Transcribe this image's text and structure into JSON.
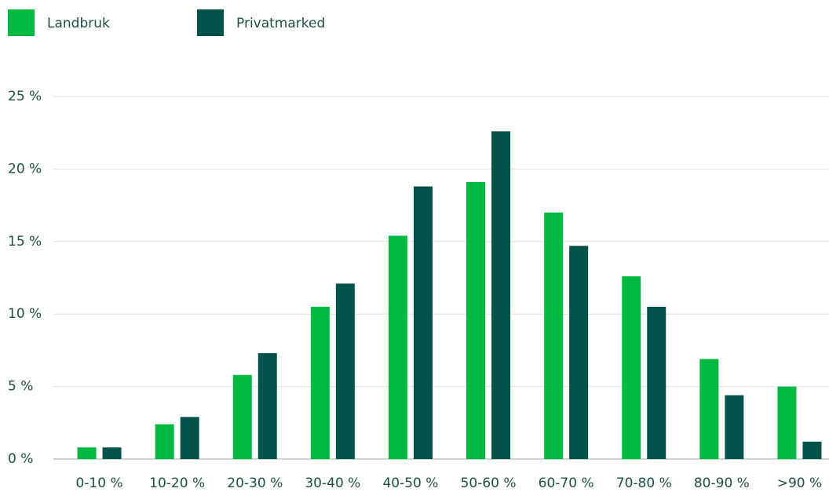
{
  "chart_data": {
    "type": "bar",
    "categories": [
      "0-10 %",
      "10-20 %",
      "20-30 %",
      "30-40 %",
      "40-50 %",
      "50-60 %",
      "60-70 %",
      "70-80 %",
      "80-90 %",
      ">90 %"
    ],
    "series": [
      {
        "name": "Landbruk",
        "color": "#00b941",
        "values": [
          0.8,
          2.4,
          5.8,
          10.5,
          15.4,
          19.1,
          17.0,
          12.6,
          6.9,
          5.0
        ]
      },
      {
        "name": "Privatmarked",
        "color": "#00524a",
        "values": [
          0.8,
          2.9,
          7.3,
          12.1,
          18.8,
          22.6,
          14.7,
          10.5,
          4.4,
          1.2
        ]
      }
    ],
    "ylim": [
      0,
      25
    ],
    "yticks": [
      {
        "value": 0,
        "label": "0 %"
      },
      {
        "value": 5,
        "label": "5 %"
      },
      {
        "value": 10,
        "label": "10 %"
      },
      {
        "value": 15,
        "label": "15 %"
      },
      {
        "value": 20,
        "label": "20 %"
      },
      {
        "value": 25,
        "label": "25 %"
      }
    ],
    "grid": true
  }
}
